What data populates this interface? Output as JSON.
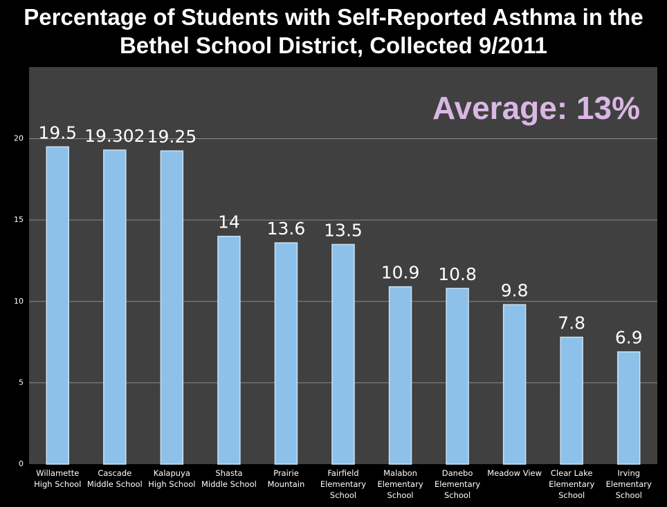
{
  "chart_data": {
    "type": "bar",
    "title": "Percentage of Students with Self-Reported Asthma in the Bethel School District, Collected 9/2011",
    "annotation": "Average: 13%",
    "categories": [
      "Willamette High School",
      "Cascade Middle School",
      "Kalapuya High School",
      "Shasta Middle School",
      "Prairie Mountain",
      "Fairfield Elementary School",
      "Malabon Elementary School",
      "Danebo Elementary School",
      "Meadow View",
      "Clear Lake Elementary School",
      "Irving Elementary School"
    ],
    "values": [
      19.5,
      19.302,
      19.25,
      14,
      13.6,
      13.5,
      10.9,
      10.8,
      9.8,
      7.8,
      6.9
    ],
    "color": "#8ec1e9",
    "ylim": [
      0,
      24.4
    ],
    "yticks": [
      0,
      5,
      10,
      15,
      20
    ],
    "grid": true
  }
}
